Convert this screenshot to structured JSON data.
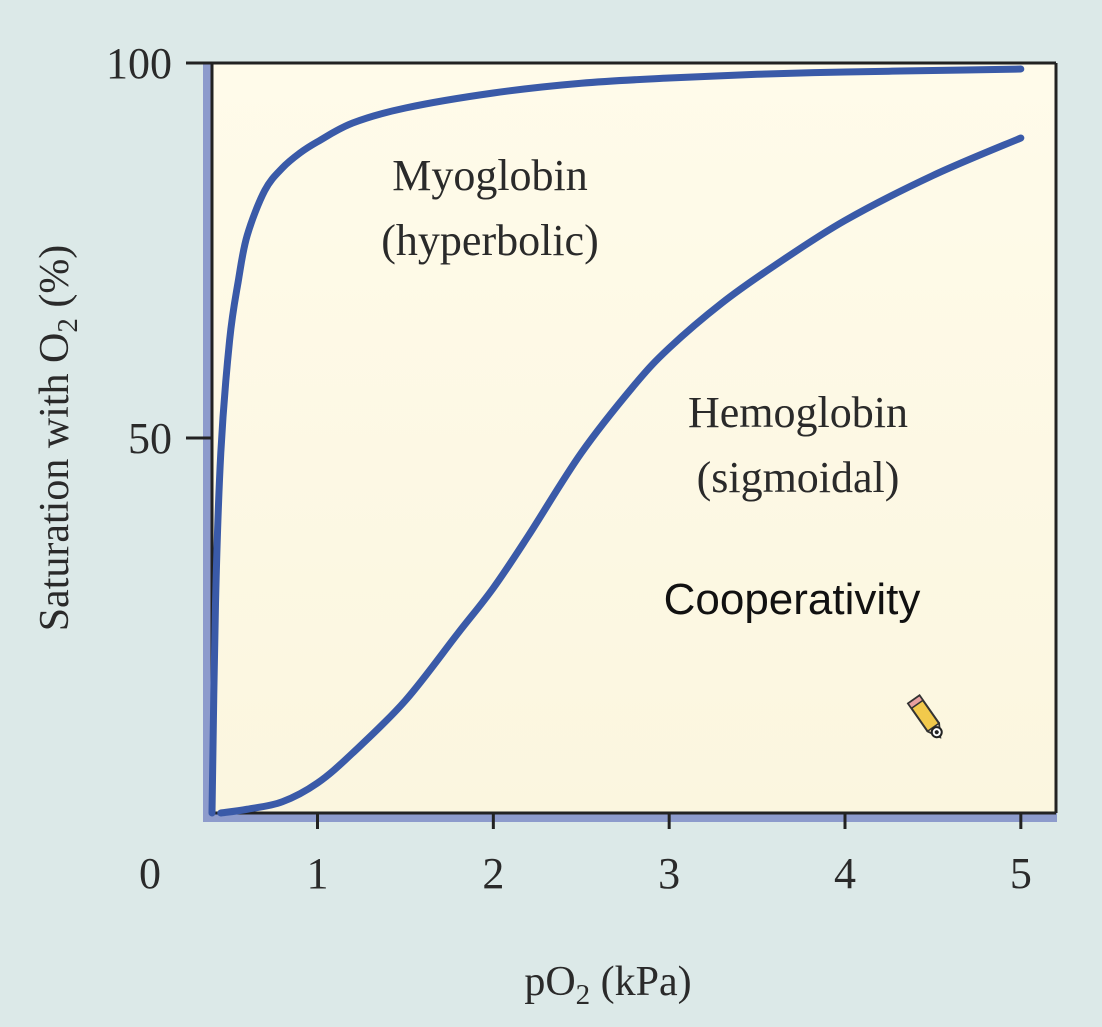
{
  "chart_data": {
    "type": "line",
    "ylabel": "Saturation with O",
    "ylabel_sub": "2",
    "ylabel_tail": " (%)",
    "xlabel": "pO",
    "xlabel_sub": "2",
    "xlabel_tail": " (kPa)",
    "origin_label": "0",
    "xlim": [
      0.4,
      5.2
    ],
    "ylim": [
      0,
      100
    ],
    "x_ticks": [
      1,
      2,
      3,
      4,
      5
    ],
    "y_ticks": [
      50,
      100
    ],
    "grid": false,
    "series": [
      {
        "label_line1": "Myoglobin",
        "label_line2": "(hyperbolic)",
        "color": "#3a5aa8",
        "x": [
          0.4,
          0.42,
          0.45,
          0.5,
          0.55,
          0.6,
          0.7,
          0.8,
          0.9,
          1.0,
          1.2,
          1.5,
          2.0,
          2.5,
          3.0,
          3.5,
          4.0,
          4.5,
          5.0
        ],
        "y": [
          0,
          28,
          48,
          63,
          71,
          77,
          83,
          86,
          88,
          89.5,
          92,
          94,
          96,
          97.3,
          98,
          98.5,
          98.8,
          99,
          99.2
        ]
      },
      {
        "label_line1": "Hemoglobin",
        "label_line2": "(sigmoidal)",
        "color": "#3a5aa8",
        "x": [
          0.45,
          0.6,
          0.8,
          1.0,
          1.2,
          1.5,
          1.8,
          2.0,
          2.2,
          2.5,
          2.8,
          3.0,
          3.3,
          3.6,
          4.0,
          4.5,
          5.0
        ],
        "y": [
          0,
          0.5,
          1.5,
          4,
          8,
          15,
          24,
          30,
          37,
          48,
          57,
          62,
          68,
          73,
          79,
          85,
          90
        ]
      }
    ],
    "annotation": "Cooperativity"
  },
  "colors": {
    "page_background": "#dce9e8",
    "plot_background": "#fdf9e8",
    "axis_accent": "#8d9bcc",
    "curve": "#3a5aa8"
  },
  "icons": {
    "cursor": "pencil-cursor-icon"
  }
}
